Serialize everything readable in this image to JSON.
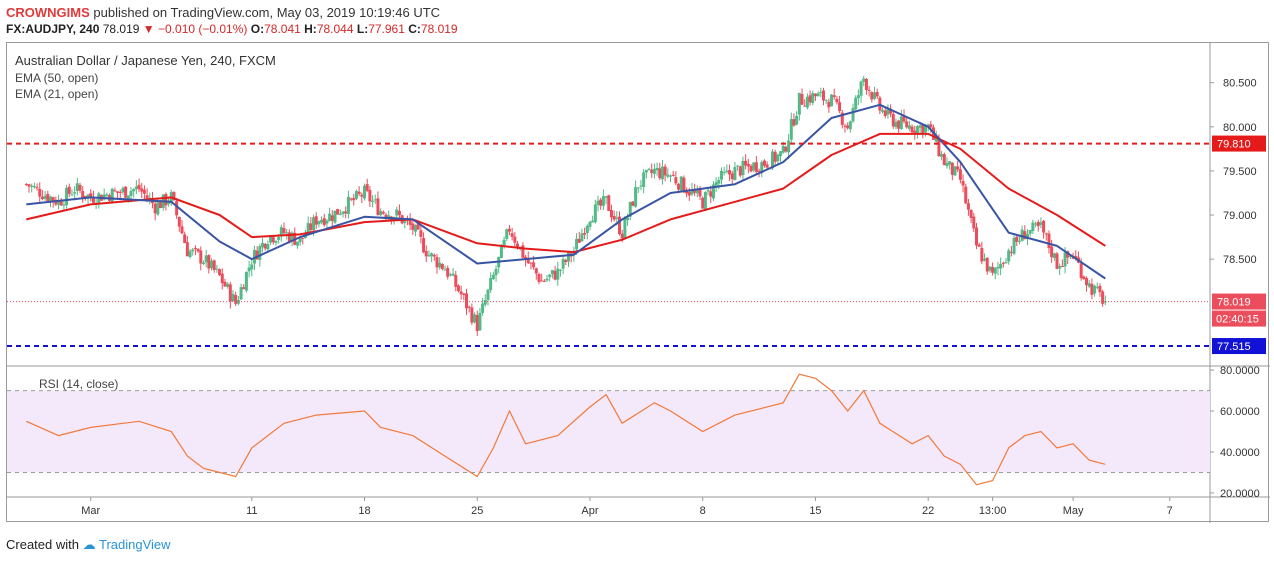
{
  "header": {
    "author": "CROWNGIMS",
    "published": "published on TradingView.com, May 03, 2019 10:19:46 UTC",
    "symbol": "FX:AUDJPY, 240",
    "last": "78.019",
    "change": "−0.010 (−0.01%)",
    "open": "78.041",
    "high": "78.044",
    "low": "77.961",
    "close": "78.019"
  },
  "legend": {
    "title": "Australian Dollar / Japanese Yen, 240, FXCM",
    "ema50": "EMA (50, open)",
    "ema21": "EMA (21, open)",
    "rsi": "RSI (14, close)"
  },
  "footer": {
    "created_with": "Created with",
    "brand": "TradingView"
  },
  "colors": {
    "up": "#53b987",
    "down": "#eb4d5c",
    "ema50": "#e51b1b",
    "ema21": "#3a54a4",
    "rsi": "#f17a3a",
    "rsi_band": "#f4e8fb",
    "resistance": "#e51b1b",
    "support": "#1212d6"
  },
  "chart_data": [
    {
      "type": "candlestick",
      "title": "Australian Dollar / Japanese Yen, 240, FXCM",
      "ylim": [
        77.3,
        80.95
      ],
      "y_ticks": [
        "80.500",
        "80.000",
        "79.500",
        "79.000",
        "78.500"
      ],
      "x_ticks": [
        {
          "label": "Mar",
          "date": "2019-03-01"
        },
        {
          "label": "11",
          "date": "2019-03-11"
        },
        {
          "label": "18",
          "date": "2019-03-18"
        },
        {
          "label": "25",
          "date": "2019-03-25"
        },
        {
          "label": "Apr",
          "date": "2019-04-01"
        },
        {
          "label": "8",
          "date": "2019-04-08"
        },
        {
          "label": "15",
          "date": "2019-04-15"
        },
        {
          "label": "22",
          "date": "2019-04-22"
        },
        {
          "label": "13:00",
          "date": "2019-04-26"
        },
        {
          "label": "May",
          "date": "2019-05-01"
        },
        {
          "label": "7",
          "date": "2019-05-07"
        }
      ],
      "date_range": [
        "2019-02-25",
        "2019-05-03"
      ],
      "price_path": [
        [
          "2019-02-25",
          79.35
        ],
        [
          "2019-02-26",
          79.25
        ],
        [
          "2019-02-27",
          79.15
        ],
        [
          "2019-02-28",
          79.3
        ],
        [
          "2019-03-01",
          79.2
        ],
        [
          "2019-03-04",
          79.3
        ],
        [
          "2019-03-05",
          79.1
        ],
        [
          "2019-03-06",
          79.2
        ],
        [
          "2019-03-07",
          78.6
        ],
        [
          "2019-03-08",
          78.5
        ],
        [
          "2019-03-09",
          78.3
        ],
        [
          "2019-03-10",
          78.0
        ],
        [
          "2019-03-11",
          78.5
        ],
        [
          "2019-03-12",
          78.75
        ],
        [
          "2019-03-13",
          78.8
        ],
        [
          "2019-03-14",
          78.7
        ],
        [
          "2019-03-15",
          78.95
        ],
        [
          "2019-03-16",
          79.0
        ],
        [
          "2019-03-18",
          79.25
        ],
        [
          "2019-03-19",
          79.05
        ],
        [
          "2019-03-20",
          79.0
        ],
        [
          "2019-03-21",
          78.85
        ],
        [
          "2019-03-22",
          78.55
        ],
        [
          "2019-03-23",
          78.4
        ],
        [
          "2019-03-24",
          78.1
        ],
        [
          "2019-03-25",
          77.75
        ],
        [
          "2019-03-26",
          78.3
        ],
        [
          "2019-03-27",
          78.85
        ],
        [
          "2019-03-28",
          78.5
        ],
        [
          "2019-03-29",
          78.25
        ],
        [
          "2019-03-30",
          78.35
        ],
        [
          "2019-03-31",
          78.6
        ],
        [
          "2019-04-01",
          79.0
        ],
        [
          "2019-04-02",
          79.15
        ],
        [
          "2019-04-03",
          78.8
        ],
        [
          "2019-04-04",
          79.35
        ],
        [
          "2019-04-05",
          79.5
        ],
        [
          "2019-04-06",
          79.45
        ],
        [
          "2019-04-08",
          79.15
        ],
        [
          "2019-04-09",
          79.4
        ],
        [
          "2019-04-10",
          79.5
        ],
        [
          "2019-04-11",
          79.55
        ],
        [
          "2019-04-12",
          79.6
        ],
        [
          "2019-04-13",
          79.7
        ],
        [
          "2019-04-14",
          80.3
        ],
        [
          "2019-04-15",
          80.35
        ],
        [
          "2019-04-16",
          80.3
        ],
        [
          "2019-04-17",
          80.0
        ],
        [
          "2019-04-18",
          80.55
        ],
        [
          "2019-04-19",
          80.2
        ],
        [
          "2019-04-20",
          80.05
        ],
        [
          "2019-04-21",
          80.0
        ],
        [
          "2019-04-22",
          80.0
        ],
        [
          "2019-04-23",
          79.6
        ],
        [
          "2019-04-24",
          79.4
        ],
        [
          "2019-04-25",
          78.65
        ],
        [
          "2019-04-26",
          78.3
        ],
        [
          "2019-04-27",
          78.6
        ],
        [
          "2019-04-28",
          78.8
        ],
        [
          "2019-04-29",
          78.85
        ],
        [
          "2019-04-30",
          78.45
        ],
        [
          "2019-05-01",
          78.55
        ],
        [
          "2019-05-02",
          78.2
        ],
        [
          "2019-05-03",
          78.02
        ]
      ],
      "series": [
        {
          "name": "EMA (50, open)",
          "values": [
            [
              "2019-02-25",
              78.95
            ],
            [
              "2019-03-01",
              79.12
            ],
            [
              "2019-03-06",
              79.2
            ],
            [
              "2019-03-09",
              79.0
            ],
            [
              "2019-03-11",
              78.75
            ],
            [
              "2019-03-14",
              78.78
            ],
            [
              "2019-03-18",
              78.92
            ],
            [
              "2019-03-21",
              78.95
            ],
            [
              "2019-03-25",
              78.68
            ],
            [
              "2019-03-28",
              78.62
            ],
            [
              "2019-03-31",
              78.58
            ],
            [
              "2019-04-03",
              78.72
            ],
            [
              "2019-04-06",
              78.95
            ],
            [
              "2019-04-10",
              79.15
            ],
            [
              "2019-04-13",
              79.3
            ],
            [
              "2019-04-16",
              79.68
            ],
            [
              "2019-04-19",
              79.92
            ],
            [
              "2019-04-22",
              79.92
            ],
            [
              "2019-04-24",
              79.75
            ],
            [
              "2019-04-27",
              79.3
            ],
            [
              "2019-04-30",
              79.0
            ],
            [
              "2019-05-03",
              78.65
            ]
          ]
        },
        {
          "name": "EMA (21, open)",
          "values": [
            [
              "2019-02-25",
              79.12
            ],
            [
              "2019-03-01",
              79.2
            ],
            [
              "2019-03-06",
              79.15
            ],
            [
              "2019-03-09",
              78.7
            ],
            [
              "2019-03-11",
              78.5
            ],
            [
              "2019-03-14",
              78.75
            ],
            [
              "2019-03-18",
              78.98
            ],
            [
              "2019-03-21",
              78.95
            ],
            [
              "2019-03-25",
              78.45
            ],
            [
              "2019-03-28",
              78.5
            ],
            [
              "2019-03-31",
              78.55
            ],
            [
              "2019-04-03",
              78.95
            ],
            [
              "2019-04-06",
              79.25
            ],
            [
              "2019-04-10",
              79.35
            ],
            [
              "2019-04-13",
              79.6
            ],
            [
              "2019-04-16",
              80.1
            ],
            [
              "2019-04-19",
              80.25
            ],
            [
              "2019-04-22",
              80.0
            ],
            [
              "2019-04-24",
              79.6
            ],
            [
              "2019-04-27",
              78.8
            ],
            [
              "2019-04-30",
              78.65
            ],
            [
              "2019-05-03",
              78.28
            ]
          ]
        }
      ],
      "horizontal_lines": [
        {
          "label": "79.810",
          "value": 79.81,
          "style": "dashed",
          "color": "#e51b1b"
        },
        {
          "label": "77.515",
          "value": 77.515,
          "style": "dashed",
          "color": "#1212d6"
        },
        {
          "label": "78.019",
          "value": 78.019,
          "style": "dotted",
          "color": "#eb4d5c"
        }
      ],
      "countdown": "02:40:15"
    },
    {
      "type": "line",
      "title": "RSI (14, close)",
      "ylim": [
        18,
        82
      ],
      "y_ticks": [
        "80.0000",
        "60.0000",
        "40.0000",
        "20.0000"
      ],
      "band": [
        30,
        70
      ],
      "series": [
        {
          "name": "RSI (14, close)",
          "values": [
            [
              "2019-02-25",
              55
            ],
            [
              "2019-02-27",
              48
            ],
            [
              "2019-03-01",
              52
            ],
            [
              "2019-03-04",
              55
            ],
            [
              "2019-03-06",
              50
            ],
            [
              "2019-03-07",
              38
            ],
            [
              "2019-03-08",
              32
            ],
            [
              "2019-03-10",
              28
            ],
            [
              "2019-03-11",
              42
            ],
            [
              "2019-03-13",
              54
            ],
            [
              "2019-03-15",
              58
            ],
            [
              "2019-03-18",
              60
            ],
            [
              "2019-03-19",
              52
            ],
            [
              "2019-03-21",
              48
            ],
            [
              "2019-03-23",
              38
            ],
            [
              "2019-03-25",
              28
            ],
            [
              "2019-03-26",
              42
            ],
            [
              "2019-03-27",
              60
            ],
            [
              "2019-03-28",
              44
            ],
            [
              "2019-03-30",
              48
            ],
            [
              "2019-04-01",
              62
            ],
            [
              "2019-04-02",
              68
            ],
            [
              "2019-04-03",
              54
            ],
            [
              "2019-04-05",
              64
            ],
            [
              "2019-04-06",
              60
            ],
            [
              "2019-04-08",
              50
            ],
            [
              "2019-04-10",
              58
            ],
            [
              "2019-04-12",
              62
            ],
            [
              "2019-04-13",
              64
            ],
            [
              "2019-04-14",
              78
            ],
            [
              "2019-04-15",
              76
            ],
            [
              "2019-04-16",
              70
            ],
            [
              "2019-04-17",
              60
            ],
            [
              "2019-04-18",
              70
            ],
            [
              "2019-04-19",
              54
            ],
            [
              "2019-04-21",
              44
            ],
            [
              "2019-04-22",
              48
            ],
            [
              "2019-04-23",
              38
            ],
            [
              "2019-04-24",
              34
            ],
            [
              "2019-04-25",
              24
            ],
            [
              "2019-04-26",
              26
            ],
            [
              "2019-04-27",
              42
            ],
            [
              "2019-04-28",
              48
            ],
            [
              "2019-04-29",
              50
            ],
            [
              "2019-04-30",
              42
            ],
            [
              "2019-05-01",
              44
            ],
            [
              "2019-05-02",
              36
            ],
            [
              "2019-05-03",
              34
            ]
          ]
        }
      ],
      "x_ticks": [
        "Mar",
        "11",
        "18",
        "25",
        "Apr",
        "8",
        "15",
        "22",
        "13:00",
        "May",
        "7"
      ]
    }
  ]
}
